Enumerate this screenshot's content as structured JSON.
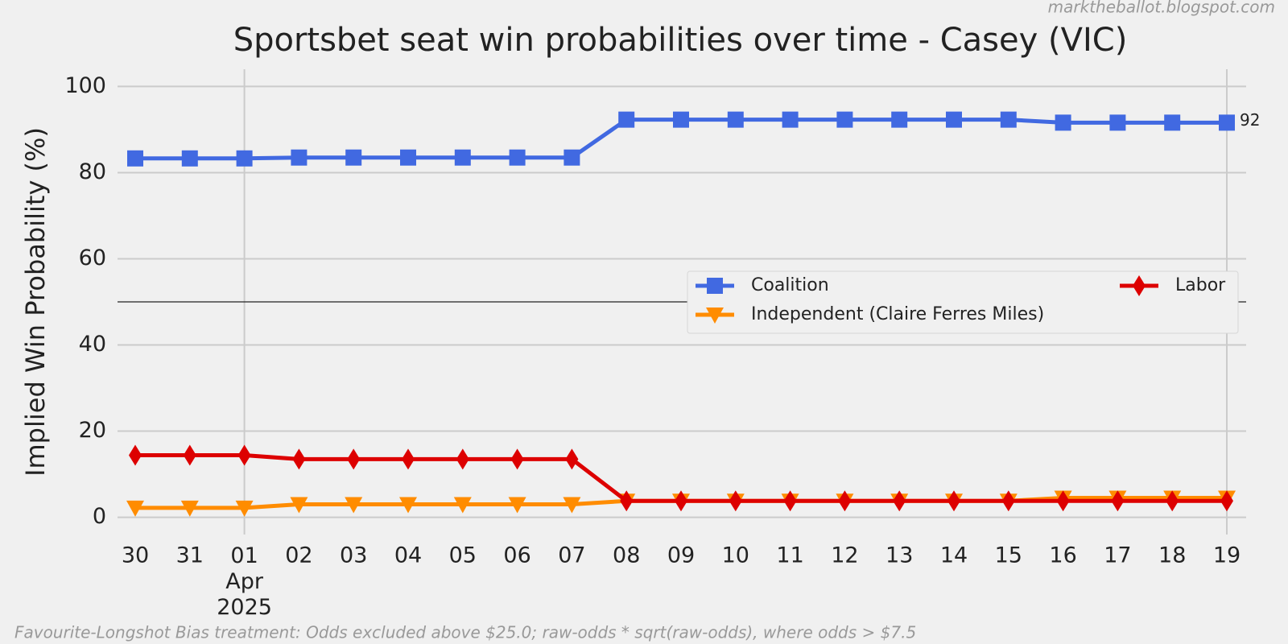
{
  "chart_data": {
    "type": "line",
    "title": "Sportsbet seat win probabilities over time - Casey (VIC)",
    "ylabel": "Implied Win Probability (%)",
    "watermark": "marktheballot.blogspot.com",
    "footnote": "Favourite-Longshot Bias treatment: Odds excluded above $25.0; raw-odds * sqrt(raw-odds), where odds > $7.5",
    "categories": [
      "30",
      "31",
      "01\nApr\n2025",
      "02",
      "03",
      "04",
      "05",
      "06",
      "07",
      "08",
      "09",
      "10",
      "11",
      "12",
      "13",
      "14",
      "15",
      "16",
      "17",
      "18",
      "19"
    ],
    "series": [
      {
        "name": "Coalition",
        "color": "#4169e1",
        "marker": "square",
        "values": [
          83.3,
          83.3,
          83.3,
          83.5,
          83.5,
          83.5,
          83.5,
          83.5,
          83.5,
          92.3,
          92.3,
          92.3,
          92.3,
          92.3,
          92.3,
          92.3,
          92.3,
          91.6,
          91.6,
          91.6,
          91.6
        ],
        "value_labels": [
          null,
          null,
          null,
          null,
          null,
          null,
          null,
          null,
          null,
          null,
          null,
          null,
          null,
          null,
          null,
          null,
          null,
          null,
          null,
          null,
          "92"
        ]
      },
      {
        "name": "Independent (Claire Ferres Miles)",
        "color": "#ff8c00",
        "marker": "triangle-down",
        "values": [
          2.2,
          2.2,
          2.2,
          3.0,
          3.0,
          3.0,
          3.0,
          3.0,
          3.0,
          3.8,
          3.8,
          3.8,
          3.8,
          3.8,
          3.8,
          3.8,
          3.8,
          4.5,
          4.5,
          4.5,
          4.5
        ]
      },
      {
        "name": "Labor",
        "color": "#dd0000",
        "marker": "diamond",
        "values": [
          14.4,
          14.4,
          14.4,
          13.5,
          13.5,
          13.5,
          13.5,
          13.5,
          13.5,
          3.8,
          3.8,
          3.8,
          3.8,
          3.8,
          3.8,
          3.8,
          3.8,
          3.8,
          3.8,
          3.8,
          3.8
        ]
      }
    ],
    "hline": 50,
    "ylim": [
      -4,
      104
    ],
    "yticks": [
      0,
      20,
      40,
      60,
      80,
      100
    ],
    "grid": true,
    "legend": "center right",
    "legend_columns": 2
  }
}
